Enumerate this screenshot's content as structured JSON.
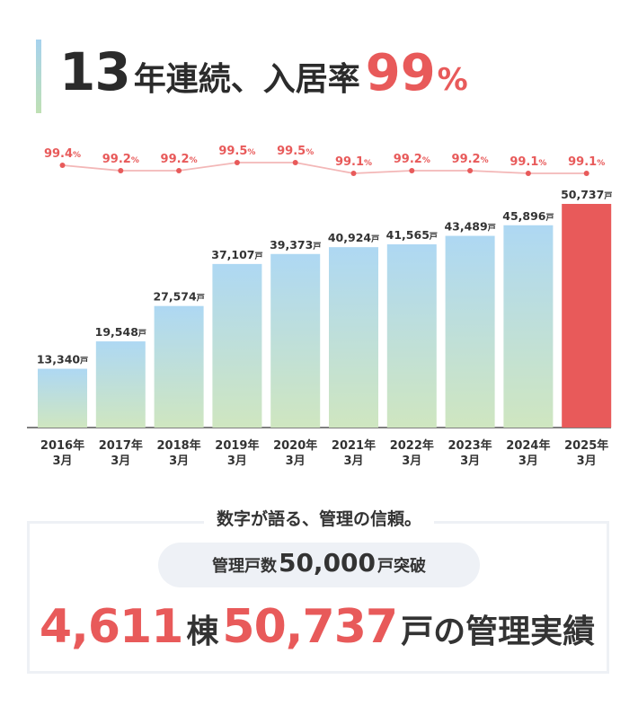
{
  "headline": {
    "number": "13",
    "text": "年連続、入居率",
    "rate": "99",
    "percent": "%"
  },
  "chart_data": {
    "type": "bar",
    "title": "",
    "categories": [
      "2016年\n3月",
      "2017年\n3月",
      "2018年\n3月",
      "2019年\n3月",
      "2020年\n3月",
      "2021年\n3月",
      "2022年\n3月",
      "2023年\n3月",
      "2024年\n3月",
      "2025年\n3月"
    ],
    "units": {
      "bar": "戸",
      "line": "%"
    },
    "series": [
      {
        "kind": "bar",
        "values": [
          13340,
          19548,
          27574,
          37107,
          39373,
          40924,
          41565,
          43489,
          45896,
          50737
        ]
      },
      {
        "kind": "line",
        "values": [
          99.4,
          99.2,
          99.2,
          99.5,
          99.5,
          99.1,
          99.2,
          99.2,
          99.1,
          99.1
        ]
      }
    ],
    "bar_labels": [
      "13,340",
      "19,548",
      "27,574",
      "37,107",
      "39,373",
      "40,924",
      "41,565",
      "43,489",
      "45,896",
      "50,737"
    ],
    "line_labels": [
      "99.4",
      "99.2",
      "99.2",
      "99.5",
      "99.5",
      "99.1",
      "99.2",
      "99.2",
      "99.1",
      "99.1"
    ],
    "ylim": [
      0,
      50737
    ],
    "grid": false,
    "colors": {
      "bar_top": "#aed8f3",
      "bar_bottom": "#cfe6c0",
      "highlight_bar": "#e85a5a",
      "line": "#f3b7b7",
      "line_point": "#e85a5a",
      "line_label": "#e85a5a",
      "bar_label": "#333333"
    },
    "highlight_index": 9
  },
  "summary": {
    "heading": "数字が語る、管理の信頼。",
    "pill_prefix": "管理戸数",
    "pill_number": "50,000",
    "pill_suffix": "戸突破",
    "buildings_number": "4,611",
    "buildings_unit": "棟",
    "units_number": "50,737",
    "units_suffix": "戸の管理実績"
  }
}
